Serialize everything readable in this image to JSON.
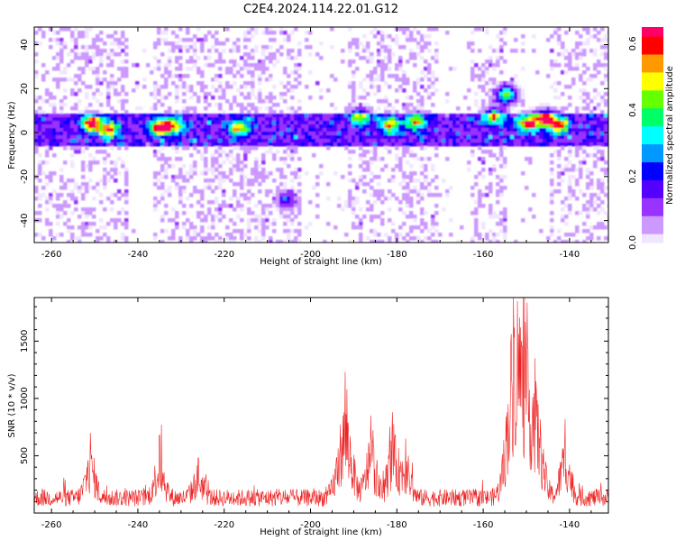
{
  "title": "C2E4.2024.114.22.01.G12",
  "chart_data": [
    {
      "type": "heatmap",
      "xlabel": "Height of straight line (km)",
      "ylabel": "Frequency (Hz)",
      "xlim": [
        -264,
        -131
      ],
      "ylim": [
        -50,
        48
      ],
      "xticks": [
        -260,
        -240,
        -220,
        -200,
        -180,
        -160,
        -140
      ],
      "yticks": [
        -40,
        -20,
        0,
        20,
        40
      ],
      "colorbar": {
        "label": "Normalized spectral amplitude",
        "range": [
          0,
          0.65
        ],
        "ticks": [
          0.0,
          0.2,
          0.4,
          0.6
        ],
        "colors": [
          "#f0e6ff",
          "#cc99ff",
          "#9933ff",
          "#5500ff",
          "#0000ff",
          "#0099ff",
          "#00ffff",
          "#00ff66",
          "#66ff00",
          "#ffff00",
          "#ff9900",
          "#ff0000",
          "#ff0066"
        ]
      },
      "band_center_hz": 2,
      "hot_spots": [
        {
          "x": -251,
          "y": 5,
          "amp": 0.55
        },
        {
          "x": -247,
          "y": 2,
          "amp": 0.45
        },
        {
          "x": -235,
          "y": 3,
          "amp": 0.6
        },
        {
          "x": -232,
          "y": 4,
          "amp": 0.35
        },
        {
          "x": -217,
          "y": 3,
          "amp": 0.4
        },
        {
          "x": -206,
          "y": -30,
          "amp": 0.2
        },
        {
          "x": -189,
          "y": 8,
          "amp": 0.35
        },
        {
          "x": -182,
          "y": 4,
          "amp": 0.4
        },
        {
          "x": -176,
          "y": 6,
          "amp": 0.35
        },
        {
          "x": -158,
          "y": 8,
          "amp": 0.4
        },
        {
          "x": -155,
          "y": 18,
          "amp": 0.45
        },
        {
          "x": -150,
          "y": 5,
          "amp": 0.5
        },
        {
          "x": -146,
          "y": 7,
          "amp": 0.55
        },
        {
          "x": -143,
          "y": 4,
          "amp": 0.45
        }
      ],
      "sparse_x_ranges": [
        [
          -243,
          -237
        ],
        [
          -203,
          -192
        ],
        [
          -171,
          -163
        ],
        [
          -155,
          -145
        ]
      ]
    },
    {
      "type": "line",
      "xlabel": "Height of straight line (km)",
      "ylabel": "SNR (10 * v/v)",
      "xlim": [
        -264,
        -131
      ],
      "ylim": [
        0,
        1880
      ],
      "xticks": [
        -260,
        -240,
        -220,
        -200,
        -180,
        -160,
        -140
      ],
      "yticks": [
        500,
        1000,
        1500
      ],
      "series_color": "#ee2222",
      "baseline": 160,
      "peaks": [
        {
          "x": -251,
          "value": 700
        },
        {
          "x": -235,
          "value": 680
        },
        {
          "x": -226,
          "value": 480
        },
        {
          "x": -192,
          "value": 1230
        },
        {
          "x": -186,
          "value": 850
        },
        {
          "x": -181,
          "value": 880
        },
        {
          "x": -178,
          "value": 650
        },
        {
          "x": -153,
          "value": 1880
        },
        {
          "x": -151,
          "value": 1450
        },
        {
          "x": -148,
          "value": 1350
        },
        {
          "x": -141,
          "value": 820
        }
      ]
    }
  ]
}
